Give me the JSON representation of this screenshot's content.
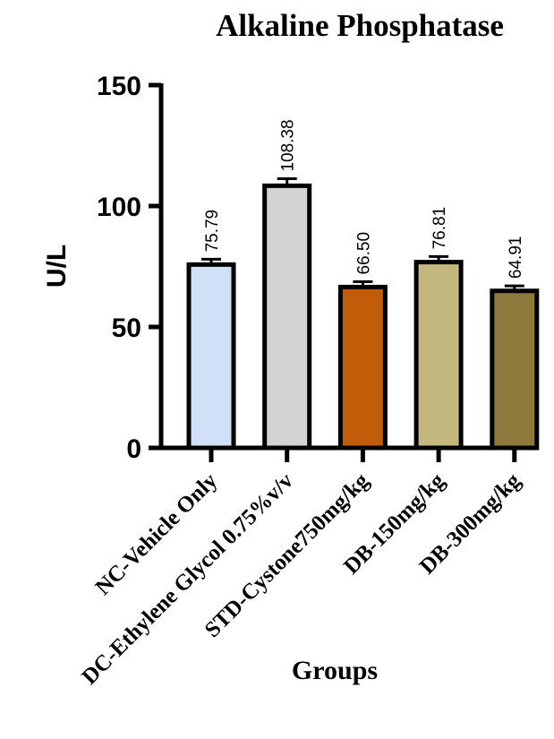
{
  "chart_data": {
    "type": "bar",
    "title": "Alkaline Phosphatase",
    "xlabel": "Groups",
    "ylabel": "U/L",
    "ylim": [
      0,
      150
    ],
    "yticks": [
      0,
      50,
      100,
      150
    ],
    "grid": false,
    "categories": [
      "NC-Vehicle Only",
      "DC-Ethylene Glycol 0.75%v/v",
      "STD-Cystone750mg/kg",
      "DB-150mg/kg",
      "DB-300mg/kg"
    ],
    "values": [
      75.79,
      108.38,
      66.5,
      76.81,
      64.91
    ],
    "value_labels": [
      "75.79",
      "108.38",
      "66.50",
      "76.81",
      "64.91"
    ],
    "error": [
      2.2,
      2.9,
      2.2,
      2.3,
      2.1
    ],
    "colors": [
      "#cfe0f7",
      "#d4d4d4",
      "#c15c08",
      "#c4b87f",
      "#8d7a3c"
    ]
  }
}
